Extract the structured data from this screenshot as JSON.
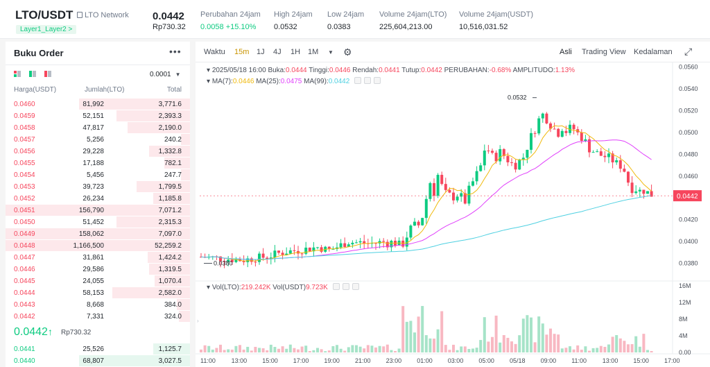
{
  "header": {
    "pair": "LTO/USDT",
    "network": "LTO Network",
    "tag": "Layer1_Layer2 >",
    "last_price": "0.0442",
    "last_price_rp": "Rp730.32",
    "stats": [
      {
        "label": "Perubahan 24jam",
        "value": "0.0058 +15.10%",
        "color": "green"
      },
      {
        "label": "High 24jam",
        "value": "0.0532",
        "color": ""
      },
      {
        "label": "Low 24jam",
        "value": "0.0383",
        "color": ""
      },
      {
        "label": "Volume 24jam(LTO)",
        "value": "225,604,213.00",
        "color": ""
      },
      {
        "label": "Volume 24jam(USDT)",
        "value": "10,516,031.52",
        "color": ""
      }
    ]
  },
  "orderbook": {
    "title": "Buku Order",
    "more": "•••",
    "precision": "0.0001",
    "columns": [
      "Harga(USDT)",
      "Jumlah(LTO)",
      "Total"
    ],
    "asks": [
      {
        "price": "0.0460",
        "amount": "81,992",
        "total": "3,771.6",
        "depth": 0.6
      },
      {
        "price": "0.0459",
        "amount": "52,151",
        "total": "2,393.3",
        "depth": 0.4
      },
      {
        "price": "0.0458",
        "amount": "47,817",
        "total": "2,190.0",
        "depth": 0.34
      },
      {
        "price": "0.0457",
        "amount": "5,256",
        "total": "240.2",
        "depth": 0.05
      },
      {
        "price": "0.0456",
        "amount": "29,228",
        "total": "1,332.8",
        "depth": 0.22
      },
      {
        "price": "0.0455",
        "amount": "17,188",
        "total": "782.1",
        "depth": 0.14
      },
      {
        "price": "0.0454",
        "amount": "5,456",
        "total": "247.7",
        "depth": 0.05
      },
      {
        "price": "0.0453",
        "amount": "39,723",
        "total": "1,799.5",
        "depth": 0.29
      },
      {
        "price": "0.0452",
        "amount": "26,234",
        "total": "1,185.8",
        "depth": 0.2
      },
      {
        "price": "0.0451",
        "amount": "156,790",
        "total": "7,071.2",
        "depth": 1.0
      },
      {
        "price": "0.0450",
        "amount": "51,452",
        "total": "2,315.3",
        "depth": 0.4
      },
      {
        "price": "0.0449",
        "amount": "158,062",
        "total": "7,097.0",
        "depth": 1.0
      },
      {
        "price": "0.0448",
        "amount": "1,166,500",
        "total": "52,259.2",
        "depth": 1.0
      },
      {
        "price": "0.0447",
        "amount": "31,861",
        "total": "1,424.2",
        "depth": 0.23
      },
      {
        "price": "0.0446",
        "amount": "29,586",
        "total": "1,319.5",
        "depth": 0.22
      },
      {
        "price": "0.0445",
        "amount": "24,055",
        "total": "1,070.4",
        "depth": 0.19
      },
      {
        "price": "0.0444",
        "amount": "58,153",
        "total": "2,582.0",
        "depth": 0.42
      },
      {
        "price": "0.0443",
        "amount": "8,668",
        "total": "384.0",
        "depth": 0.07
      },
      {
        "price": "0.0442",
        "amount": "7,331",
        "total": "324.0",
        "depth": 0.06
      }
    ],
    "mid_price": "0.0442",
    "mid_arrow": "↑",
    "mid_price_rp": "Rp730.32",
    "bids": [
      {
        "price": "0.0441",
        "amount": "25,526",
        "total": "1,125.7",
        "depth": 0.2
      },
      {
        "price": "0.0440",
        "amount": "68,807",
        "total": "3,027.5",
        "depth": 0.6
      }
    ]
  },
  "toolbar": {
    "waktu": "Waktu",
    "intervals": [
      "15m",
      "1J",
      "4J",
      "1H",
      "1M"
    ],
    "active_interval": "15m",
    "views": [
      "Asli",
      "Trading View",
      "Kedalaman"
    ],
    "active_view": "Asli"
  },
  "legend": {
    "date": "2025/05/18 16:00",
    "buka_label": "Buka:",
    "buka": "0.0444",
    "tinggi_label": "Tinggi:",
    "tinggi": "0.0446",
    "rendah_label": "Rendah:",
    "rendah": "0.0441",
    "tutup_label": "Tutup:",
    "tutup": "0.0442",
    "perubahan_label": "PERUBAHAN:",
    "perubahan": "-0.68%",
    "amplitudo_label": "AMPLITUDO:",
    "amplitudo": "1.13%",
    "ma7_label": "MA(7):",
    "ma7": "0.0446",
    "ma25_label": "MA(25):",
    "ma25": "0.0475",
    "ma99_label": "MA(99):",
    "ma99": "0.0442",
    "vol_lto_label": "Vol(LTO):",
    "vol_lto": "219.242K",
    "vol_usdt_label": "Vol(USDT)",
    "vol_usdt": "9.723K"
  },
  "chart_data": {
    "type": "candlestick",
    "price_ticks": [
      "0.0560",
      "0.0540",
      "0.0520",
      "0.0500",
      "0.0480",
      "0.0460",
      "0.0440",
      "0.0420",
      "0.0400",
      "0.0380"
    ],
    "price_range": [
      0.0367,
      0.0563
    ],
    "vol_ticks": [
      "16M",
      "12M",
      "8M",
      "4M",
      "0.00"
    ],
    "vol_range": [
      0,
      16
    ],
    "time_ticks": [
      "11:00",
      "13:00",
      "15:00",
      "17:00",
      "19:00",
      "21:00",
      "23:00",
      "01:00",
      "03:00",
      "05:00",
      "05/18",
      "09:00",
      "11:00",
      "13:00",
      "15:00",
      "17:00"
    ],
    "current_price_label": "0.0442",
    "high_marker": "0.0532",
    "low_marker": "0.0380",
    "ma_colors": {
      "ma7": "#f0b90b",
      "ma25": "#e040fb",
      "ma99": "#4dd0e1"
    },
    "up_color": "#0ecb81",
    "down_color": "#f6465d"
  }
}
